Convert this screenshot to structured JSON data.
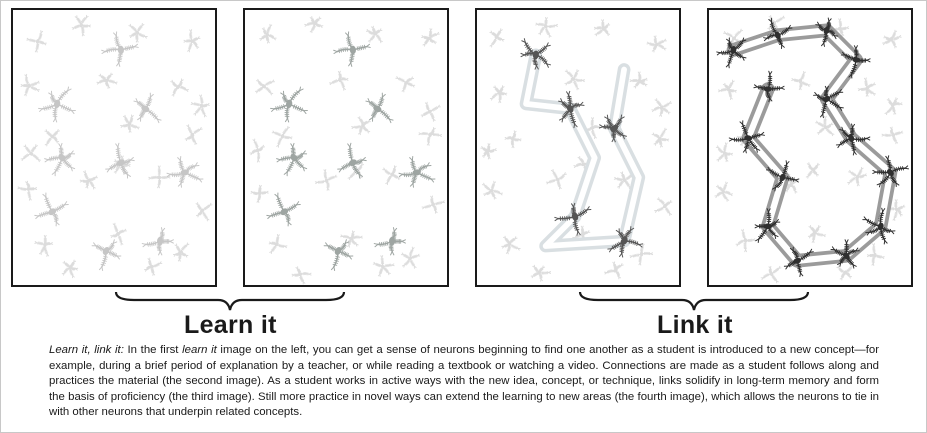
{
  "panels": [
    {
      "id": "p1",
      "stage": "scattered"
    },
    {
      "id": "p2",
      "stage": "aligned"
    },
    {
      "id": "p3",
      "stage": "linked"
    },
    {
      "id": "p4",
      "stage": "extended"
    }
  ],
  "labels": {
    "learn": "Learn it",
    "link": "Link it"
  },
  "caption": {
    "lead": "Learn it, link it:",
    "part1": " In the first ",
    "term": "learn it",
    "part2": " image on the left, you can get a sense of neurons beginning to find one another as a student is introduced to a new concept—for example, during a brief period of explanation by a teacher, or while reading a textbook or watching a video. Connections are made as a student follows along and practices the material (the second image). As a student works in active ways with the new idea, concept, or technique, links solidify in long-term memory and form the basis of proficiency (the third image). Still more practice in novel ways can extend the learning to new areas (the fourth image), which allows the neurons to tie in with other neurons that underpin related concepts."
  },
  "colors": {
    "faint": "#dcdcdc",
    "light": "#c6c6c6",
    "medium": "#9ea5a2",
    "dark": "#555555",
    "darker": "#2f2f2f",
    "link_light": "#d9dfe2",
    "link_dark": "#9b9b9b",
    "border": "#1a1a1a"
  }
}
